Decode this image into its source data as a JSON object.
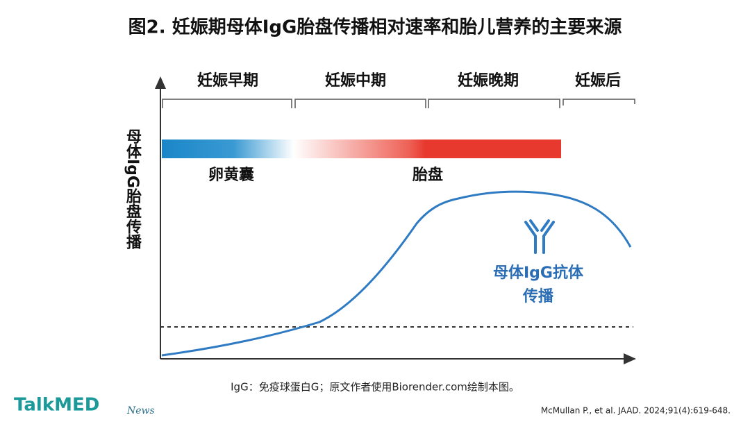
{
  "title": "图2. 妊娠期母体IgG胎盘传播相对速率和胎儿营养的主要来源",
  "phases": [
    "妊娠早期",
    "妊娠中期",
    "妊娠晚期",
    "妊娠后"
  ],
  "y_axis_label": "母体IgG胎盘传播",
  "nutrition_sources": [
    "卵黄囊",
    "胎盘"
  ],
  "curve_label": [
    "母体IgG抗体",
    "传播"
  ],
  "caption": "IgG：免疫球蛋白G；原文作者使用Biorender.com绘制本图。",
  "citation": "McMullan P., et al. JAAD. 2024;91(4):619-648.",
  "logo": {
    "name": "TalkMED",
    "tag": "News"
  }
}
